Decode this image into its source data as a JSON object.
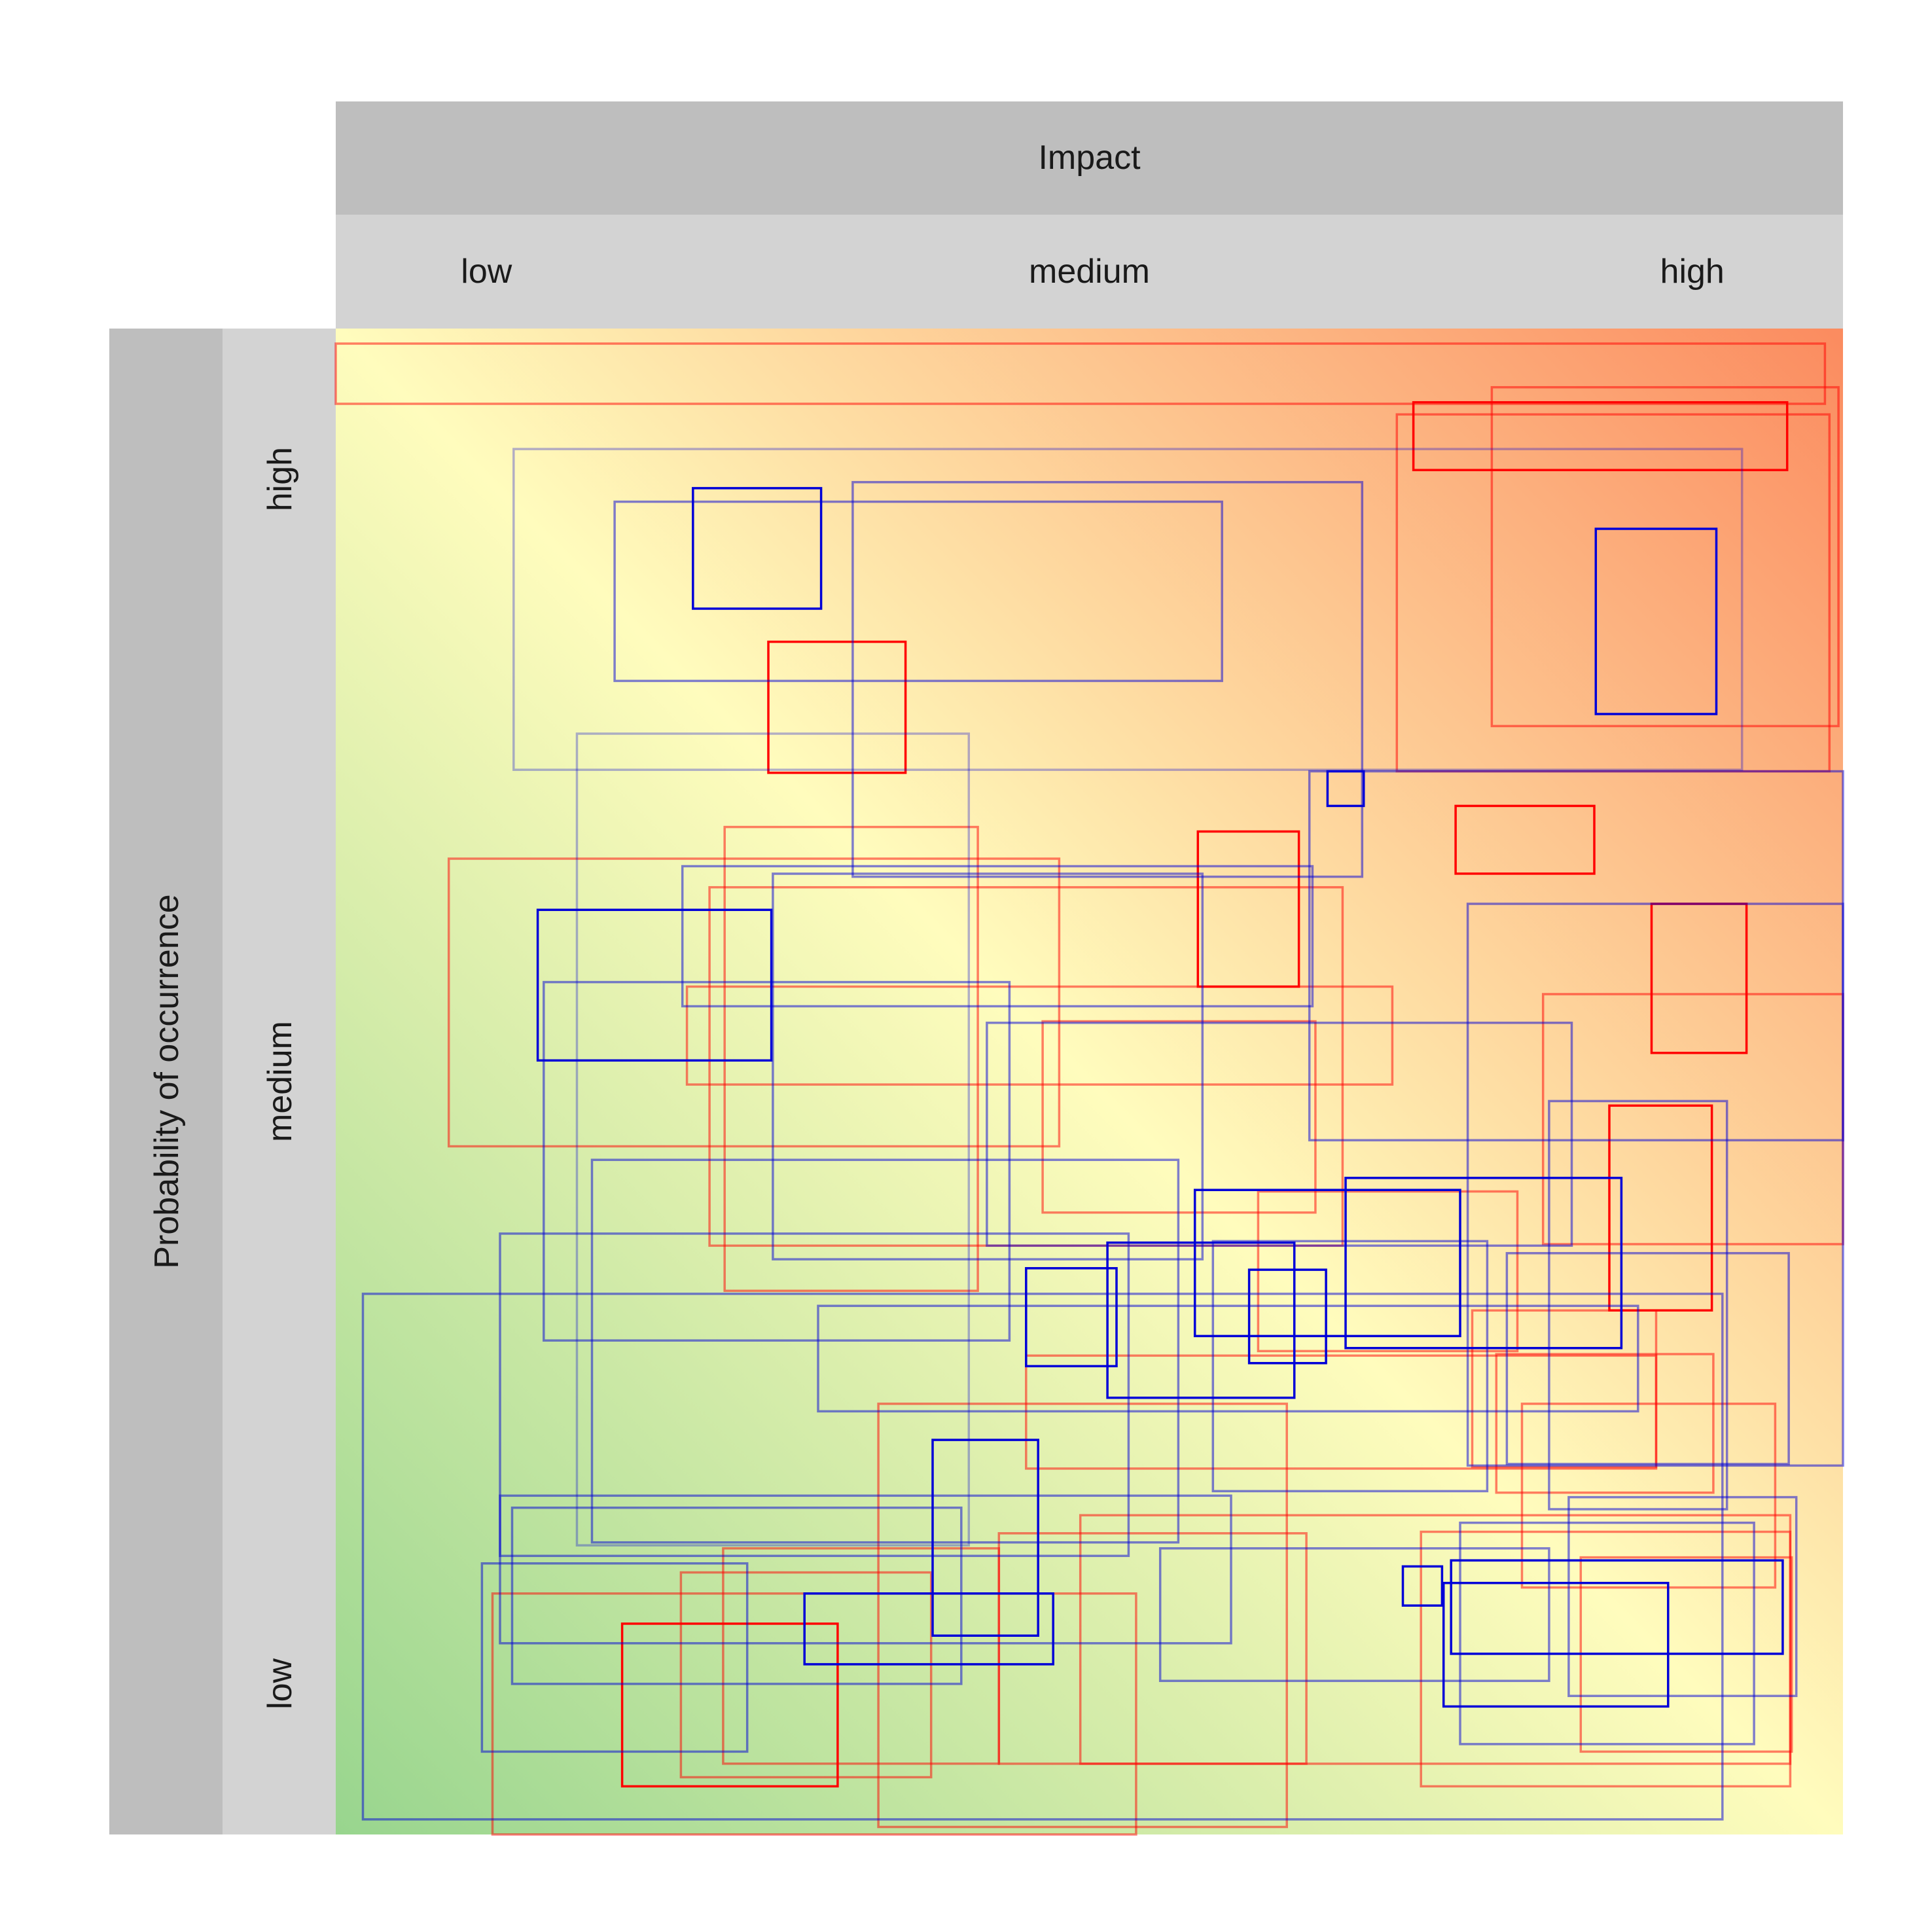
{
  "chart_data": {
    "type": "risk-matrix",
    "title": "",
    "xlabel": "Impact",
    "ylabel": "Probability of occurrence",
    "x_categories": [
      "low",
      "medium",
      "high"
    ],
    "y_categories": [
      "low",
      "medium",
      "high"
    ],
    "xlim": [
      0,
      1
    ],
    "ylim": [
      0,
      1
    ],
    "grid": false,
    "legend": "none",
    "colors": {
      "strip_outer": "#bebebe",
      "strip_inner": "#d3d3d3",
      "gradient_low": "#98d58e",
      "gradient_mid": "#fffcbd",
      "gradient_high": "#fb8b5f",
      "series_red": "#ff0000",
      "series_blue": "#0000d8"
    },
    "series": [
      {
        "color": "red",
        "rects": [
          {
            "x": [
              0.0,
              0.988
            ],
            "y": [
              0.95,
              0.99
            ],
            "opacity": 0.5
          },
          {
            "x": [
              0.767,
              0.997
            ],
            "y": [
              0.736,
              0.961
            ],
            "opacity": 0.5
          },
          {
            "x": [
              0.715,
              0.963
            ],
            "y": [
              0.906,
              0.951
            ],
            "opacity": 1.0
          },
          {
            "x": [
              0.704,
              0.991
            ],
            "y": [
              0.706,
              0.943
            ],
            "opacity": 0.5
          },
          {
            "x": [
              0.287,
              0.378
            ],
            "y": [
              0.705,
              0.792
            ],
            "opacity": 1.0
          },
          {
            "x": [
              0.258,
              0.426
            ],
            "y": [
              0.361,
              0.669
            ],
            "opacity": 0.5
          },
          {
            "x": [
              0.075,
              0.48
            ],
            "y": [
              0.457,
              0.648
            ],
            "opacity": 0.5
          },
          {
            "x": [
              0.743,
              0.835
            ],
            "y": [
              0.638,
              0.683
            ],
            "opacity": 1.0
          },
          {
            "x": [
              0.572,
              0.639
            ],
            "y": [
              0.563,
              0.666
            ],
            "opacity": 1.0
          },
          {
            "x": [
              0.248,
              0.668
            ],
            "y": [
              0.391,
              0.629
            ],
            "opacity": 0.5
          },
          {
            "x": [
              0.233,
              0.701
            ],
            "y": [
              0.498,
              0.563
            ],
            "opacity": 0.5
          },
          {
            "x": [
              0.873,
              0.936
            ],
            "y": [
              0.519,
              0.618
            ],
            "opacity": 1.0
          },
          {
            "x": [
              0.801,
              1.0
            ],
            "y": [
              0.392,
              0.558
            ],
            "opacity": 0.5
          },
          {
            "x": [
              0.469,
              0.65
            ],
            "y": [
              0.413,
              0.54
            ],
            "opacity": 0.5
          },
          {
            "x": [
              0.845,
              0.913
            ],
            "y": [
              0.348,
              0.484
            ],
            "opacity": 1.0
          },
          {
            "x": [
              0.612,
              0.784
            ],
            "y": [
              0.321,
              0.427
            ],
            "opacity": 0.5
          },
          {
            "x": [
              0.754,
              0.876
            ],
            "y": [
              0.244,
              0.348
            ],
            "opacity": 0.5
          },
          {
            "x": [
              0.77,
              0.914
            ],
            "y": [
              0.227,
              0.319
            ],
            "opacity": 0.5
          },
          {
            "x": [
              0.458,
              0.876
            ],
            "y": [
              0.243,
              0.318
            ],
            "opacity": 0.5
          },
          {
            "x": [
              0.787,
              0.955
            ],
            "y": [
              0.164,
              0.286
            ],
            "opacity": 0.5
          },
          {
            "x": [
              0.36,
              0.631
            ],
            "y": [
              0.005,
              0.286
            ],
            "opacity": 0.5
          },
          {
            "x": [
              0.494,
              0.965
            ],
            "y": [
              0.047,
              0.212
            ],
            "opacity": 0.5
          },
          {
            "x": [
              0.72,
              0.965
            ],
            "y": [
              0.032,
              0.201
            ],
            "opacity": 0.5
          },
          {
            "x": [
              0.826,
              0.966
            ],
            "y": [
              0.055,
              0.184
            ],
            "opacity": 0.5
          },
          {
            "x": [
              0.257,
              0.44
            ],
            "y": [
              0.047,
              0.19
            ],
            "opacity": 0.5
          },
          {
            "x": [
              0.44,
              0.644
            ],
            "y": [
              0.047,
              0.2
            ],
            "opacity": 0.5
          },
          {
            "x": [
              0.229,
              0.395
            ],
            "y": [
              0.038,
              0.174
            ],
            "opacity": 0.5
          },
          {
            "x": [
              0.104,
              0.531
            ],
            "y": [
              0.0,
              0.16
            ],
            "opacity": 0.5
          },
          {
            "x": [
              0.19,
              0.333
            ],
            "y": [
              0.032,
              0.14
            ],
            "opacity": 1.0
          }
        ]
      },
      {
        "color": "blue",
        "rects": [
          {
            "x": [
              0.118,
              0.933
            ],
            "y": [
              0.707,
              0.92
            ],
            "opacity": 0.3
          },
          {
            "x": [
              0.185,
              0.588
            ],
            "y": [
              0.766,
              0.885
            ],
            "opacity": 0.5
          },
          {
            "x": [
              0.237,
              0.322
            ],
            "y": [
              0.814,
              0.894
            ],
            "opacity": 1.0
          },
          {
            "x": [
              0.343,
              0.681
            ],
            "y": [
              0.636,
              0.898
            ],
            "opacity": 0.5
          },
          {
            "x": [
              0.836,
              0.916
            ],
            "y": [
              0.744,
              0.867
            ],
            "opacity": 1.0
          },
          {
            "x": [
              0.16,
              0.42
            ],
            "y": [
              0.192,
              0.731
            ],
            "opacity": 0.3
          },
          {
            "x": [
              0.646,
              1.0
            ],
            "y": [
              0.461,
              0.706
            ],
            "opacity": 0.5
          },
          {
            "x": [
              0.658,
              0.682
            ],
            "y": [
              0.683,
              0.706
            ],
            "opacity": 1.0
          },
          {
            "x": [
              0.23,
              0.648
            ],
            "y": [
              0.55,
              0.643
            ],
            "opacity": 0.5
          },
          {
            "x": [
              0.29,
              0.575
            ],
            "y": [
              0.382,
              0.638
            ],
            "opacity": 0.5
          },
          {
            "x": [
              0.134,
              0.289
            ],
            "y": [
              0.514,
              0.614
            ],
            "opacity": 1.0
          },
          {
            "x": [
              0.751,
              1.0
            ],
            "y": [
              0.245,
              0.618
            ],
            "opacity": 0.5
          },
          {
            "x": [
              0.138,
              0.447
            ],
            "y": [
              0.328,
              0.566
            ],
            "opacity": 0.5
          },
          {
            "x": [
              0.432,
              0.82
            ],
            "y": [
              0.391,
              0.539
            ],
            "opacity": 0.5
          },
          {
            "x": [
              0.805,
              0.923
            ],
            "y": [
              0.216,
              0.487
            ],
            "opacity": 0.5
          },
          {
            "x": [
              0.17,
              0.559
            ],
            "y": [
              0.194,
              0.448
            ],
            "opacity": 0.5
          },
          {
            "x": [
              0.109,
              0.526
            ],
            "y": [
              0.185,
              0.399
            ],
            "opacity": 0.5
          },
          {
            "x": [
              0.018,
              0.92
            ],
            "y": [
              0.01,
              0.359
            ],
            "opacity": 0.5
          },
          {
            "x": [
              0.57,
              0.746
            ],
            "y": [
              0.331,
              0.428
            ],
            "opacity": 1.0
          },
          {
            "x": [
              0.67,
              0.853
            ],
            "y": [
              0.323,
              0.436
            ],
            "opacity": 1.0
          },
          {
            "x": [
              0.582,
              0.764
            ],
            "y": [
              0.228,
              0.394
            ],
            "opacity": 0.5
          },
          {
            "x": [
              0.777,
              0.964
            ],
            "y": [
              0.246,
              0.386
            ],
            "opacity": 0.5
          },
          {
            "x": [
              0.458,
              0.518
            ],
            "y": [
              0.311,
              0.376
            ],
            "opacity": 1.0
          },
          {
            "x": [
              0.512,
              0.636
            ],
            "y": [
              0.29,
              0.393
            ],
            "opacity": 1.0
          },
          {
            "x": [
              0.606,
              0.657
            ],
            "y": [
              0.313,
              0.375
            ],
            "opacity": 1.0
          },
          {
            "x": [
              0.32,
              0.864
            ],
            "y": [
              0.281,
              0.351
            ],
            "opacity": 0.5
          },
          {
            "x": [
              0.396,
              0.466
            ],
            "y": [
              0.132,
              0.262
            ],
            "opacity": 1.0
          },
          {
            "x": [
              0.109,
              0.594
            ],
            "y": [
              0.127,
              0.225
            ],
            "opacity": 0.5
          },
          {
            "x": [
              0.117,
              0.415
            ],
            "y": [
              0.1,
              0.217
            ],
            "opacity": 0.5
          },
          {
            "x": [
              0.097,
              0.273
            ],
            "y": [
              0.055,
              0.18
            ],
            "opacity": 0.5
          },
          {
            "x": [
              0.311,
              0.476
            ],
            "y": [
              0.113,
              0.16
            ],
            "opacity": 1.0
          },
          {
            "x": [
              0.547,
              0.805
            ],
            "y": [
              0.102,
              0.19
            ],
            "opacity": 0.5
          },
          {
            "x": [
              0.746,
              0.941
            ],
            "y": [
              0.06,
              0.207
            ],
            "opacity": 0.5
          },
          {
            "x": [
              0.818,
              0.969
            ],
            "y": [
              0.092,
              0.224
            ],
            "opacity": 0.5
          },
          {
            "x": [
              0.708,
              0.734
            ],
            "y": [
              0.152,
              0.178
            ],
            "opacity": 1.0
          },
          {
            "x": [
              0.74,
              0.96
            ],
            "y": [
              0.12,
              0.182
            ],
            "opacity": 1.0
          },
          {
            "x": [
              0.735,
              0.884
            ],
            "y": [
              0.085,
              0.167
            ],
            "opacity": 1.0
          }
        ]
      }
    ]
  }
}
